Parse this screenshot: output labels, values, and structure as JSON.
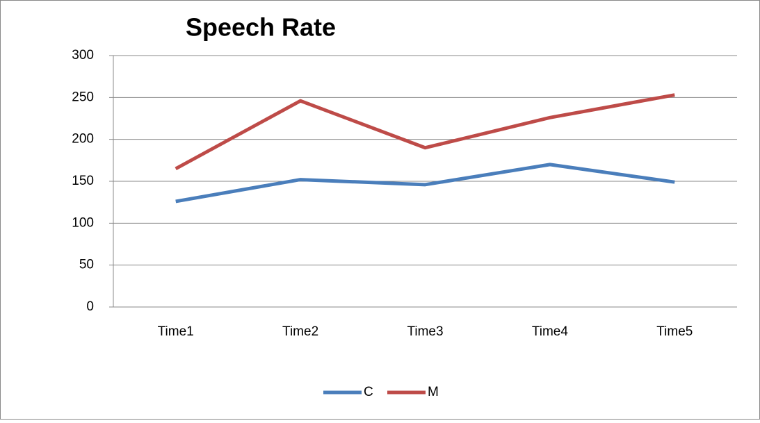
{
  "chart_data": {
    "type": "line",
    "title": "Speech Rate",
    "categories": [
      "Time1",
      "Time2",
      "Time3",
      "Time4",
      "Time5"
    ],
    "series": [
      {
        "name": "C",
        "color": "#4a7ebb",
        "values": [
          126,
          152,
          146,
          170,
          149
        ]
      },
      {
        "name": "M",
        "color": "#be4b48",
        "values": [
          165,
          246,
          190,
          226,
          253
        ]
      }
    ],
    "ylim": [
      0,
      300
    ],
    "yticks": [
      0,
      50,
      100,
      150,
      200,
      250,
      300
    ],
    "grid": true,
    "legend": "bottom"
  }
}
